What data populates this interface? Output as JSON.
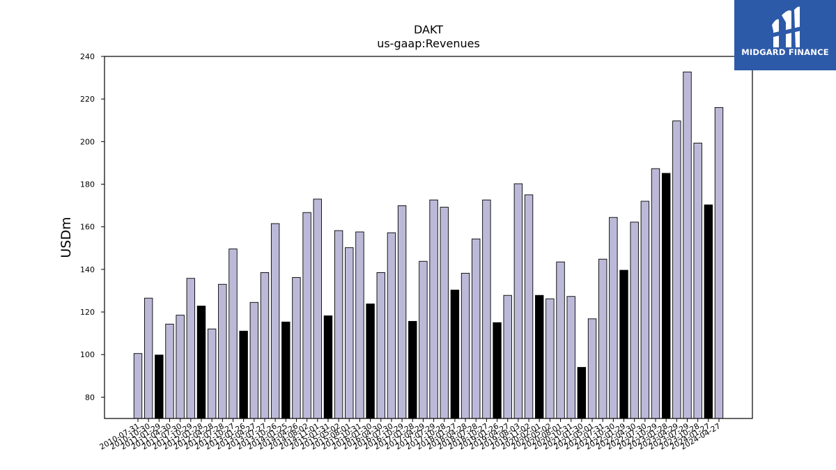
{
  "chart_data": {
    "type": "bar",
    "title": "DAKT",
    "subtitle": "us-gaap:Revenues",
    "ylabel": "USDm",
    "xlabel": "",
    "ylim": [
      70,
      240
    ],
    "yticks": [
      80,
      100,
      120,
      140,
      160,
      180,
      200,
      220,
      240
    ],
    "colors": {
      "quarter": "#bcb9d8",
      "annual": "#000000"
    },
    "categories": [
      "2010-07-31",
      "2010-10-30",
      "2011-01-29",
      "2011-04-30",
      "2011-07-30",
      "2011-10-29",
      "2012-01-28",
      "2012-04-28",
      "2012-07-28",
      "2012-10-27",
      "2013-01-26",
      "2013-04-27",
      "2013-07-27",
      "2013-10-26",
      "2014-01-25",
      "2014-04-26",
      "2014-08-02",
      "2014-11-01",
      "2015-01-31",
      "2015-05-02",
      "2015-08-01",
      "2015-10-31",
      "2016-01-30",
      "2016-04-30",
      "2016-07-30",
      "2016-10-29",
      "2017-01-28",
      "2017-04-29",
      "2017-07-29",
      "2017-10-28",
      "2018-01-27",
      "2018-04-28",
      "2018-07-28",
      "2018-10-27",
      "2019-01-26",
      "2019-04-27",
      "2019-08-03",
      "2019-11-02",
      "2020-02-01",
      "2020-05-02",
      "2020-08-01",
      "2020-10-31",
      "2021-01-30",
      "2021-05-01",
      "2021-07-31",
      "2021-10-30",
      "2022-01-29",
      "2022-04-30",
      "2022-07-30",
      "2022-10-29",
      "2023-01-28",
      "2023-04-29",
      "2023-07-29",
      "2023-10-28",
      "2024-01-27",
      "2024-04-27"
    ],
    "values": [
      100.5,
      126.5,
      99.8,
      114.3,
      118.5,
      135.8,
      122.8,
      112,
      133,
      149.6,
      111,
      124.5,
      138.5,
      161.5,
      115.3,
      136.2,
      166.7,
      173,
      118.2,
      158.2,
      150.2,
      157.6,
      123.8,
      138.5,
      157.2,
      169.9,
      115.6,
      143.8,
      172.6,
      169.2,
      130.3,
      138.2,
      154.3,
      172.6,
      115,
      127.8,
      180.2,
      175,
      127.8,
      126.2,
      143.5,
      127.3,
      94,
      116.8,
      144.8,
      164.4,
      139.6,
      162.2,
      172,
      187.3,
      185.1,
      209.7,
      232.7,
      199.3,
      170.3,
      216
    ],
    "highlighted_indices": [
      2,
      6,
      10,
      14,
      18,
      22,
      26,
      30,
      34,
      38,
      42,
      46,
      50,
      54
    ],
    "legend": "none",
    "grid": false
  },
  "logo": {
    "text": "MIDGARD FINANCE",
    "color": "#2d5aa8"
  }
}
